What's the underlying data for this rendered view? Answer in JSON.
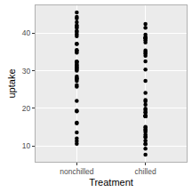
{
  "chart_data": {
    "type": "scatter",
    "x_label": "Treatment",
    "y_label": "uptake",
    "x": [
      "nonchilled",
      "nonchilled",
      "nonchilled",
      "nonchilled",
      "nonchilled",
      "nonchilled",
      "nonchilled",
      "nonchilled",
      "nonchilled",
      "nonchilled",
      "nonchilled",
      "nonchilled",
      "nonchilled",
      "nonchilled",
      "nonchilled",
      "nonchilled",
      "nonchilled",
      "nonchilled",
      "nonchilled",
      "nonchilled",
      "nonchilled",
      "nonchilled",
      "nonchilled",
      "nonchilled",
      "nonchilled",
      "nonchilled",
      "nonchilled",
      "nonchilled",
      "nonchilled",
      "nonchilled",
      "nonchilled",
      "nonchilled",
      "nonchilled",
      "nonchilled",
      "nonchilled",
      "nonchilled",
      "nonchilled",
      "nonchilled",
      "nonchilled",
      "nonchilled",
      "nonchilled",
      "nonchilled",
      "chilled",
      "chilled",
      "chilled",
      "chilled",
      "chilled",
      "chilled",
      "chilled",
      "chilled",
      "chilled",
      "chilled",
      "chilled",
      "chilled",
      "chilled",
      "chilled",
      "chilled",
      "chilled",
      "chilled",
      "chilled",
      "chilled",
      "chilled",
      "chilled",
      "chilled",
      "chilled",
      "chilled",
      "chilled",
      "chilled",
      "chilled",
      "chilled",
      "chilled",
      "chilled",
      "chilled",
      "chilled",
      "chilled",
      "chilled",
      "chilled",
      "chilled",
      "chilled",
      "chilled",
      "chilled",
      "chilled",
      "chilled",
      "chilled"
    ],
    "values": [
      16.0,
      30.4,
      34.8,
      37.2,
      35.3,
      39.2,
      39.7,
      13.6,
      27.3,
      37.1,
      41.8,
      40.6,
      41.4,
      44.3,
      16.2,
      32.4,
      40.3,
      42.1,
      42.9,
      43.9,
      45.5,
      10.6,
      19.2,
      26.2,
      30.0,
      30.9,
      32.4,
      35.5,
      12.0,
      22.0,
      30.6,
      31.8,
      32.4,
      31.1,
      31.5,
      11.3,
      19.4,
      25.8,
      27.9,
      28.5,
      28.1,
      27.8,
      14.2,
      24.1,
      30.3,
      34.6,
      32.5,
      35.4,
      38.7,
      9.3,
      27.3,
      35.0,
      38.8,
      38.6,
      37.5,
      42.4,
      15.1,
      21.0,
      38.1,
      34.0,
      38.9,
      39.6,
      41.4,
      10.5,
      14.9,
      18.1,
      18.9,
      19.5,
      22.2,
      21.9,
      7.7,
      11.4,
      12.3,
      13.0,
      12.5,
      13.7,
      14.4,
      10.6,
      18.0,
      17.9,
      17.9,
      17.9,
      18.9,
      19.9
    ],
    "color": "#000000",
    "ylim": [
      5.81,
      47.39
    ],
    "yticks": [
      10,
      20,
      30,
      40
    ],
    "grid": true
  }
}
